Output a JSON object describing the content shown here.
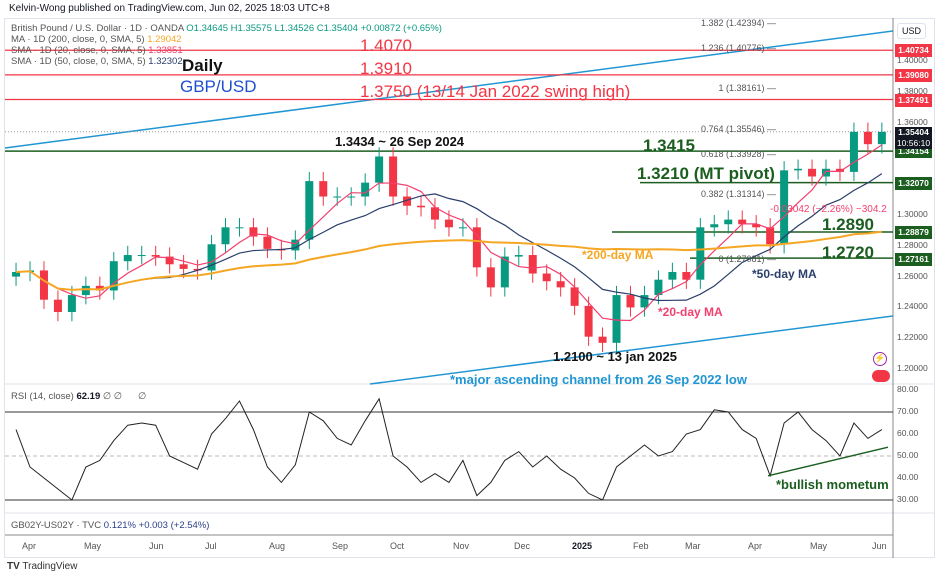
{
  "header": {
    "published": "Kelvin-Wong published on TradingView.com, Jun 02, 2025 18:03 UTC+8",
    "symbol": "British Pound / U.S. Dollar · 1D · OANDA",
    "o": "O1.34645",
    "h": "H1.35575",
    "l": "L1.34526",
    "c": "C1.35404",
    "chg": "+0.00872 (+0.65%)",
    "ma200": "MA · 1D (200, close, 0, SMA, 5)",
    "ma200_val": "1.29042",
    "sma20": "SMA · 1D (20, close, 0, SMA, 5)",
    "sma20_val": "1.33851",
    "sma50": "SMA · 1D (50, close, 0, SMA, 5)",
    "sma50_val": "1.32302"
  },
  "colors": {
    "ma200": "#f5a623",
    "sma20": "#f23f6e",
    "sma50": "#2a3f6b",
    "resistance": "#f23645",
    "support": "#1b5e20",
    "channel": "#2196d3",
    "up": "#089981",
    "down": "#f23645"
  },
  "price_axis": {
    "currency": "USD",
    "ticks": [
      "1.40000",
      "1.38000",
      "1.36000",
      "1.30000",
      "1.28000",
      "1.26000",
      "1.24000",
      "1.22000",
      "1.20000"
    ],
    "badges": [
      {
        "v": "1.40734",
        "c": "#f23645"
      },
      {
        "v": "1.39080",
        "c": "#f23645"
      },
      {
        "v": "1.37491",
        "c": "#f23645"
      },
      {
        "v": "1.34154",
        "c": "#1b5e20"
      },
      {
        "v": "1.32070",
        "c": "#1b5e20"
      },
      {
        "v": "1.28879",
        "c": "#1b5e20"
      },
      {
        "v": "1.27161",
        "c": "#1b5e20"
      }
    ],
    "last": "1.35404",
    "countdown": "10:56:10"
  },
  "annotations": {
    "daily": "Daily",
    "pair": "GBP/USD",
    "r1": "1.4070",
    "r2": "1.3910",
    "r3": "1.3750 (13/14 Jan 2022 swing high)",
    "sep_high": "1.3434 ~ 26 Sep 2024",
    "s1": "1.3415",
    "s2": "1.3210 (MT pivot)",
    "s3": "1.2890",
    "s4": "1.2720",
    "ma200": "*200-day MA",
    "ma50": "*50-day MA",
    "ma20": "*20-day MA",
    "jan_low": "1.2100 ~ 13 jan 2025",
    "channel": "*major ascending channel from 26 Sep 2022 low",
    "measure": "-0.03042 (−2.26%) −304.2",
    "rsi_note": "*bullish mometum"
  },
  "fib": [
    {
      "t": "1.382 (1.42394)",
      "v": 1.42394
    },
    {
      "t": "1.236 (1.40776)",
      "v": 1.40776
    },
    {
      "t": "1 (1.38161)",
      "v": 1.38161
    },
    {
      "t": "0.764 (1.35546)",
      "v": 1.35546
    },
    {
      "t": "0.618 (1.33928)",
      "v": 1.33928
    },
    {
      "t": "0.382 (1.31314)",
      "v": 1.31314
    },
    {
      "t": "0 (1.27081)",
      "v": 1.27081
    }
  ],
  "rsi": {
    "label": "RSI (14, close)",
    "value": "62.19",
    "extra": "∅ ∅",
    "extra2": "∅",
    "ticks": [
      "80.00",
      "70.00",
      "60.00",
      "50.00",
      "40.00",
      "30.00"
    ]
  },
  "spread": {
    "label": "GB02Y-US02Y · TVC",
    "value": "0.121%",
    "chg": "+0.003 (+2.54%)"
  },
  "time_axis": [
    "Apr",
    "May",
    "Jun",
    "Jul",
    "Aug",
    "Sep",
    "Oct",
    "Nov",
    "Dec",
    "2025",
    "Feb",
    "Mar",
    "Apr",
    "May",
    "Jun"
  ],
  "footer": {
    "brand": "TradingView"
  },
  "chart_data": {
    "type": "candlestick",
    "title": "British Pound / U.S. Dollar · 1D · OANDA",
    "ylim": [
      1.19,
      1.43
    ],
    "levels": {
      "resistance": [
        1.407,
        1.391,
        1.375
      ],
      "support": [
        1.3415,
        1.321,
        1.289,
        1.272
      ]
    },
    "dates": [
      "2024-03-25",
      "2024-04-01",
      "2024-04-08",
      "2024-04-15",
      "2024-04-22",
      "2024-04-29",
      "2024-05-06",
      "2024-05-13",
      "2024-05-20",
      "2024-05-27",
      "2024-06-03",
      "2024-06-10",
      "2024-06-17",
      "2024-06-24",
      "2024-07-01",
      "2024-07-08",
      "2024-07-15",
      "2024-07-22",
      "2024-07-29",
      "2024-08-05",
      "2024-08-12",
      "2024-08-19",
      "2024-08-26",
      "2024-09-02",
      "2024-09-09",
      "2024-09-16",
      "2024-09-23",
      "2024-09-30",
      "2024-10-07",
      "2024-10-14",
      "2024-10-21",
      "2024-10-28",
      "2024-11-04",
      "2024-11-11",
      "2024-11-18",
      "2024-11-25",
      "2024-12-02",
      "2024-12-09",
      "2024-12-16",
      "2024-12-23",
      "2024-12-30",
      "2025-01-06",
      "2025-01-13",
      "2025-01-20",
      "2025-01-27",
      "2025-02-03",
      "2025-02-10",
      "2025-02-17",
      "2025-02-24",
      "2025-03-03",
      "2025-03-10",
      "2025-03-17",
      "2025-03-24",
      "2025-03-31",
      "2025-04-07",
      "2025-04-14",
      "2025-04-21",
      "2025-04-28",
      "2025-05-05",
      "2025-05-12",
      "2025-05-19",
      "2025-05-26",
      "2025-06-02"
    ],
    "close": [
      1.263,
      1.264,
      1.245,
      1.237,
      1.248,
      1.254,
      1.251,
      1.27,
      1.274,
      1.274,
      1.273,
      1.268,
      1.265,
      1.264,
      1.281,
      1.292,
      1.292,
      1.286,
      1.278,
      1.277,
      1.284,
      1.322,
      1.312,
      1.312,
      1.312,
      1.321,
      1.338,
      1.312,
      1.306,
      1.305,
      1.297,
      1.292,
      1.292,
      1.266,
      1.253,
      1.273,
      1.274,
      1.262,
      1.257,
      1.253,
      1.241,
      1.221,
      1.217,
      1.248,
      1.24,
      1.248,
      1.258,
      1.263,
      1.258,
      1.292,
      1.294,
      1.297,
      1.294,
      1.292,
      1.281,
      1.329,
      1.33,
      1.325,
      1.33,
      1.328,
      1.354,
      1.346,
      1.354
    ],
    "rsi": [
      62,
      45,
      40,
      35,
      30,
      45,
      48,
      57,
      64,
      65,
      64,
      50,
      47,
      44,
      60,
      67,
      75,
      62,
      45,
      38,
      46,
      70,
      66,
      58,
      55,
      66,
      76,
      50,
      45,
      38,
      42,
      38,
      48,
      32,
      38,
      48,
      52,
      45,
      50,
      44,
      40,
      33,
      30,
      45,
      50,
      55,
      50,
      52,
      60,
      62,
      71,
      70,
      62,
      58,
      41,
      65,
      70,
      62,
      57,
      50,
      65,
      58,
      62
    ],
    "rsi_ylim": [
      20,
      85
    ]
  }
}
